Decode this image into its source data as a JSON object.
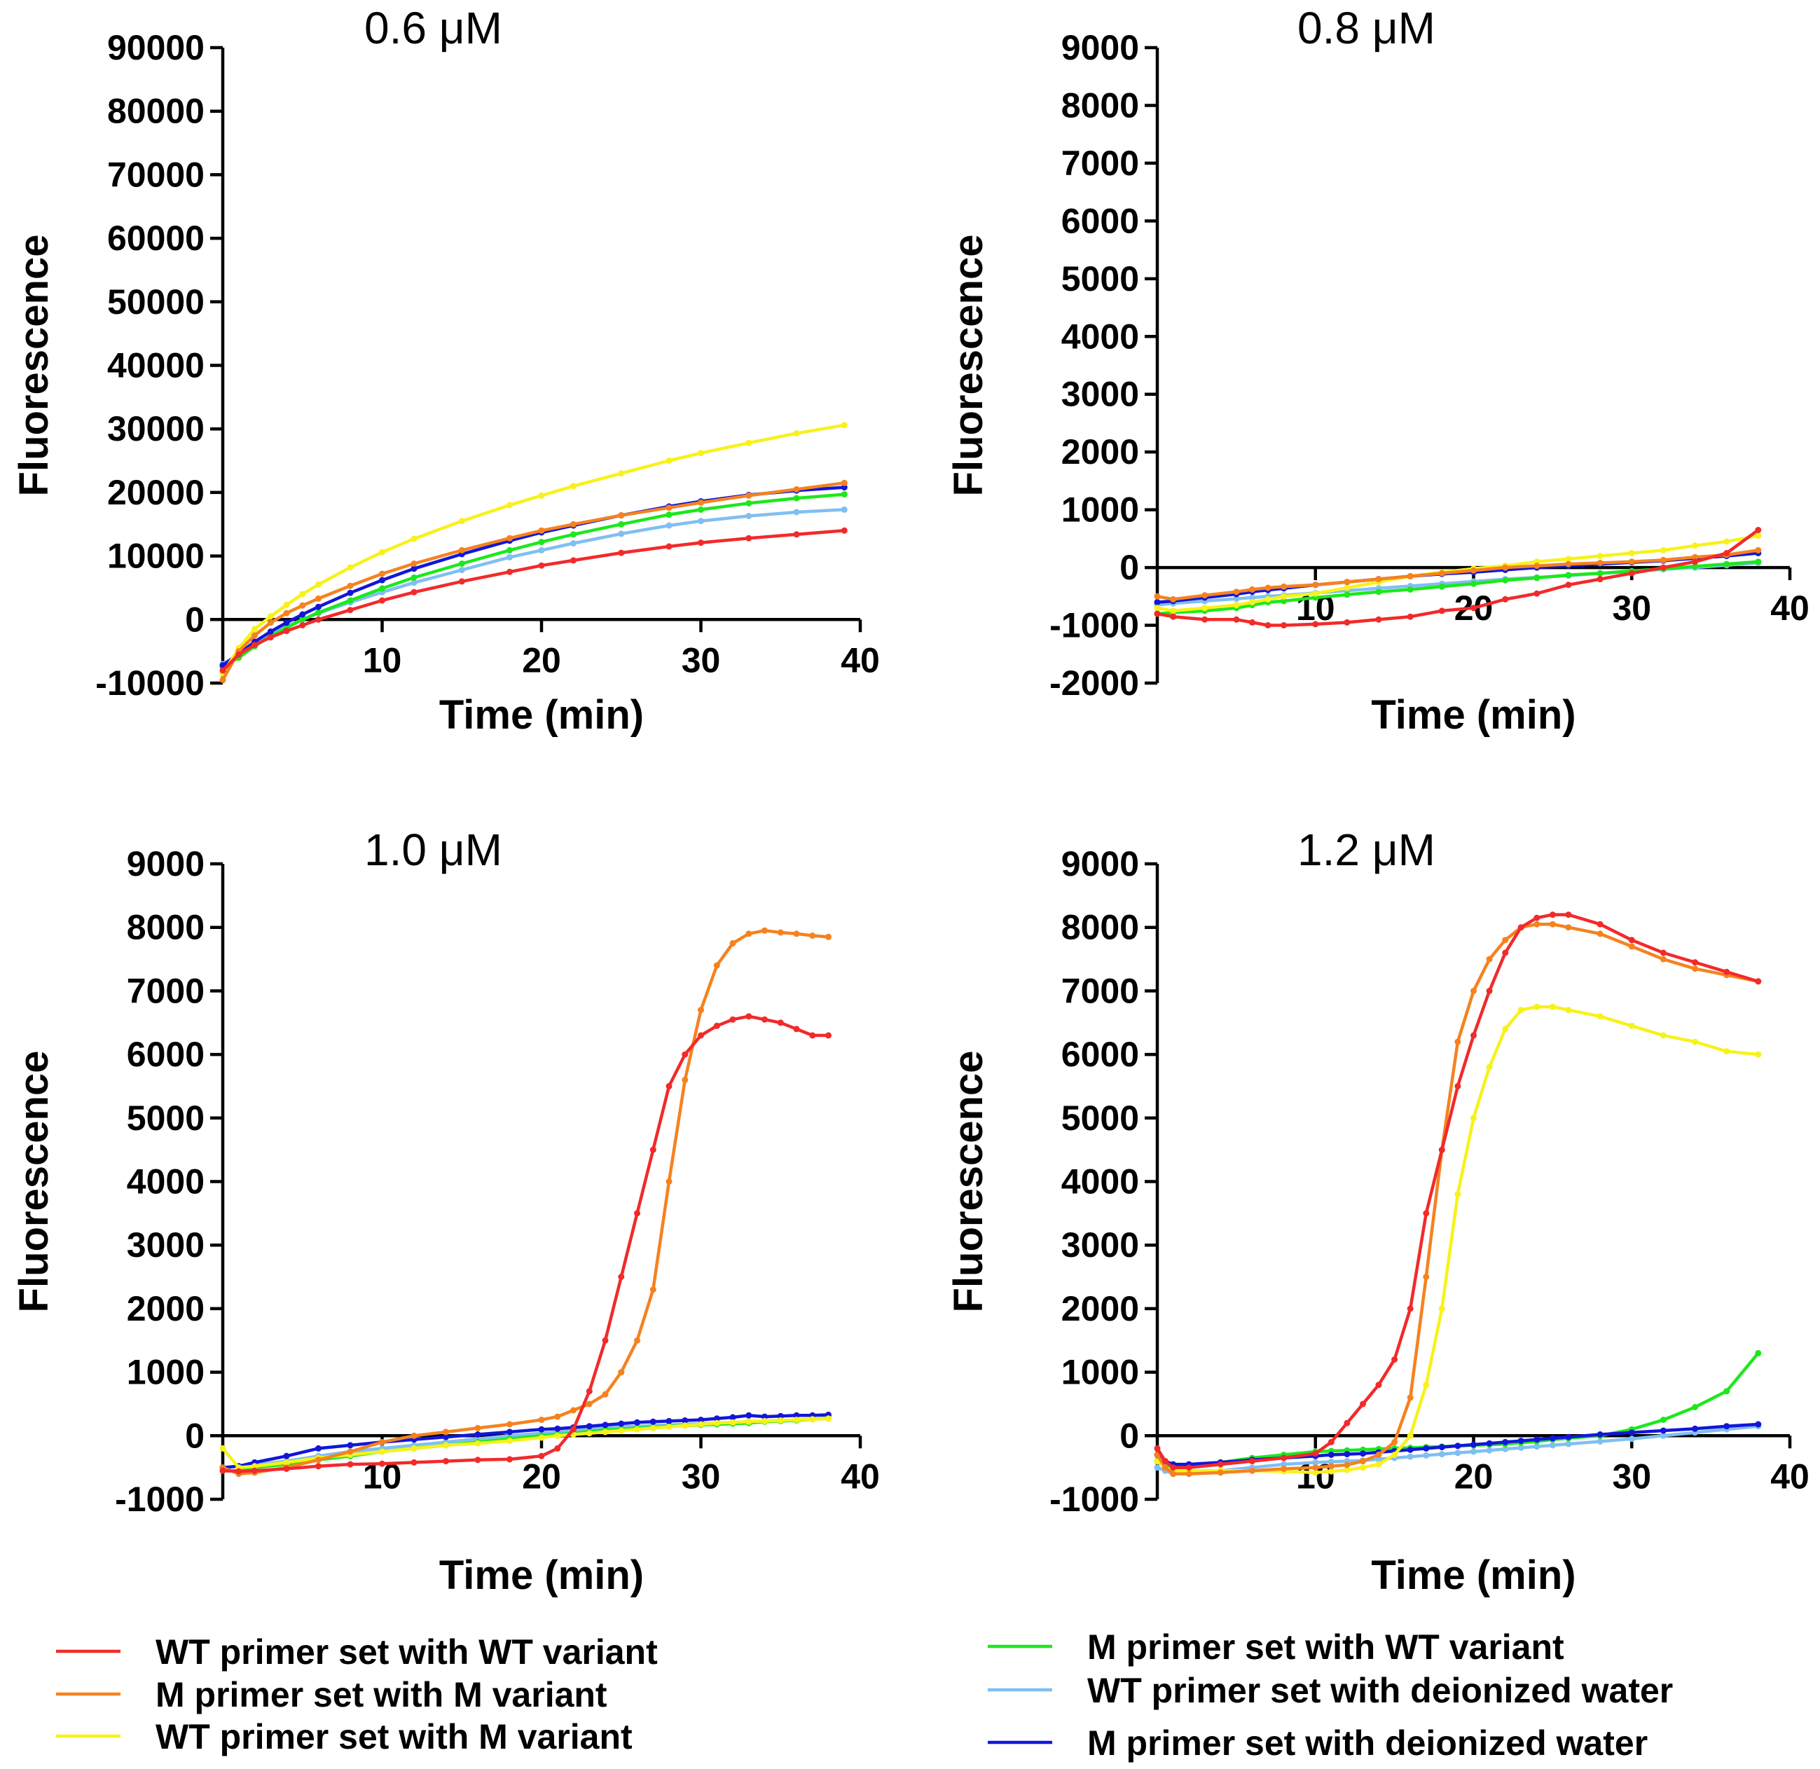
{
  "chart_data": [
    {
      "type": "line",
      "title": "0.6 μM",
      "xlabel": "Time (min)",
      "ylabel": "Fluorescence",
      "xlim": [
        0,
        40
      ],
      "ylim": [
        -10000,
        90000
      ],
      "xticks": [
        10,
        20,
        30,
        40
      ],
      "yticks": [
        -10000,
        0,
        10000,
        20000,
        30000,
        40000,
        50000,
        60000,
        70000,
        80000,
        90000
      ],
      "x": [
        0,
        1,
        2,
        3,
        4,
        5,
        6,
        8,
        10,
        12,
        15,
        18,
        20,
        22,
        25,
        28,
        30,
        33,
        36,
        39
      ],
      "series": [
        {
          "name": "WT primer set with WT variant",
          "values": [
            -8000,
            -5500,
            -4000,
            -2800,
            -1800,
            -900,
            0,
            1500,
            3000,
            4300,
            6000,
            7500,
            8500,
            9300,
            10500,
            11500,
            12100,
            12800,
            13400,
            14000
          ]
        },
        {
          "name": "M primer set with M variant",
          "values": [
            -9500,
            -5000,
            -2500,
            -500,
            1000,
            2200,
            3300,
            5300,
            7200,
            8800,
            10900,
            12800,
            14000,
            15000,
            16400,
            17600,
            18400,
            19500,
            20500,
            21500
          ]
        },
        {
          "name": "WT primer set with M variant",
          "values": [
            -8500,
            -4500,
            -1500,
            500,
            2300,
            4000,
            5500,
            8200,
            10600,
            12700,
            15500,
            18000,
            19500,
            21000,
            23000,
            25000,
            26200,
            27800,
            29300,
            30600
          ]
        },
        {
          "name": "M primer set with WT variant",
          "values": [
            -7500,
            -6000,
            -4200,
            -2600,
            -1300,
            0,
            1100,
            3000,
            4900,
            6600,
            8800,
            10900,
            12200,
            13400,
            15000,
            16500,
            17300,
            18300,
            19100,
            19700
          ]
        },
        {
          "name": "WT primer set with deionized water",
          "values": [
            -7000,
            -5500,
            -3800,
            -2300,
            -1100,
            0,
            1000,
            2700,
            4300,
            5800,
            7800,
            9800,
            10900,
            12000,
            13500,
            14800,
            15500,
            16300,
            16900,
            17300
          ]
        },
        {
          "name": "M primer set with deionized water",
          "values": [
            -7200,
            -5400,
            -3500,
            -1900,
            -500,
            800,
            2000,
            4200,
            6200,
            8000,
            10300,
            12400,
            13700,
            14800,
            16400,
            17800,
            18600,
            19600,
            20300,
            20800
          ]
        }
      ]
    },
    {
      "type": "line",
      "title": "0.8 μM",
      "xlabel": "Time (min)",
      "ylabel": "Fluorescence",
      "xlim": [
        0,
        40
      ],
      "ylim": [
        -2000,
        9000
      ],
      "xticks": [
        10,
        20,
        30,
        40
      ],
      "yticks": [
        -2000,
        -1000,
        0,
        1000,
        2000,
        3000,
        4000,
        5000,
        6000,
        7000,
        8000,
        9000
      ],
      "x": [
        0,
        1,
        3,
        5,
        6,
        7,
        8,
        10,
        12,
        14,
        16,
        18,
        20,
        22,
        24,
        26,
        28,
        30,
        32,
        34,
        36,
        38
      ],
      "series": [
        {
          "name": "WT primer set with WT variant",
          "values": [
            -800,
            -850,
            -900,
            -900,
            -950,
            -1000,
            -1000,
            -980,
            -950,
            -900,
            -850,
            -750,
            -700,
            -550,
            -450,
            -300,
            -200,
            -100,
            0,
            100,
            250,
            650
          ]
        },
        {
          "name": "M primer set with M variant",
          "values": [
            -500,
            -550,
            -480,
            -420,
            -380,
            -350,
            -330,
            -300,
            -250,
            -200,
            -150,
            -100,
            -50,
            0,
            30,
            60,
            80,
            100,
            130,
            180,
            220,
            300
          ]
        },
        {
          "name": "WT primer set with M variant",
          "values": [
            -700,
            -750,
            -700,
            -650,
            -600,
            -550,
            -500,
            -450,
            -350,
            -250,
            -150,
            -80,
            -20,
            30,
            100,
            150,
            200,
            250,
            300,
            380,
            450,
            550
          ]
        },
        {
          "name": "M primer set with WT variant",
          "values": [
            -800,
            -780,
            -750,
            -700,
            -650,
            -600,
            -580,
            -520,
            -470,
            -420,
            -380,
            -330,
            -280,
            -220,
            -180,
            -130,
            -100,
            -60,
            -20,
            20,
            60,
            100
          ]
        },
        {
          "name": "WT primer set with deionized water",
          "values": [
            -650,
            -620,
            -580,
            -540,
            -520,
            -500,
            -480,
            -440,
            -400,
            -360,
            -320,
            -280,
            -240,
            -200,
            -170,
            -140,
            -100,
            -70,
            -30,
            0,
            40,
            80
          ]
        },
        {
          "name": "M primer set with deionized water",
          "values": [
            -600,
            -580,
            -520,
            -460,
            -420,
            -390,
            -360,
            -300,
            -250,
            -200,
            -150,
            -110,
            -80,
            -40,
            0,
            30,
            60,
            90,
            120,
            160,
            200,
            250
          ]
        }
      ]
    },
    {
      "type": "line",
      "title": "1.0 μM",
      "xlabel": "Time (min)",
      "ylabel": "Fluorescence",
      "xlim": [
        0,
        40
      ],
      "ylim": [
        -1000,
        9000
      ],
      "xticks": [
        10,
        20,
        30,
        40
      ],
      "yticks": [
        -1000,
        0,
        1000,
        2000,
        3000,
        4000,
        5000,
        6000,
        7000,
        8000,
        9000
      ],
      "x": [
        0,
        1,
        2,
        4,
        6,
        8,
        10,
        12,
        14,
        16,
        18,
        20,
        21,
        22,
        23,
        24,
        25,
        26,
        27,
        28,
        29,
        30,
        31,
        32,
        33,
        34,
        35,
        36,
        37,
        38
      ],
      "series": [
        {
          "name": "WT primer set with WT variant",
          "values": [
            -550,
            -560,
            -550,
            -520,
            -480,
            -450,
            -440,
            -420,
            -400,
            -380,
            -370,
            -320,
            -200,
            100,
            700,
            1500,
            2500,
            3500,
            4500,
            5500,
            6000,
            6300,
            6450,
            6550,
            6600,
            6550,
            6500,
            6400,
            6300,
            6300
          ]
        },
        {
          "name": "M primer set with M variant",
          "values": [
            -500,
            -600,
            -580,
            -500,
            -380,
            -250,
            -100,
            0,
            60,
            120,
            180,
            250,
            300,
            400,
            500,
            650,
            1000,
            1500,
            2300,
            4000,
            5600,
            6700,
            7400,
            7750,
            7900,
            7950,
            7920,
            7900,
            7870,
            7850
          ]
        },
        {
          "name": "WT primer set with M variant",
          "values": [
            -200,
            -500,
            -480,
            -420,
            -350,
            -300,
            -250,
            -200,
            -150,
            -120,
            -80,
            -30,
            0,
            20,
            40,
            60,
            80,
            100,
            120,
            140,
            160,
            180,
            200,
            210,
            220,
            230,
            240,
            250,
            260,
            270
          ]
        },
        {
          "name": "M primer set with WT variant",
          "values": [
            -550,
            -550,
            -500,
            -450,
            -380,
            -320,
            -250,
            -200,
            -150,
            -100,
            -50,
            0,
            20,
            40,
            70,
            90,
            100,
            120,
            130,
            150,
            160,
            170,
            180,
            190,
            200,
            220,
            230,
            240,
            260,
            280
          ]
        },
        {
          "name": "WT primer set with deionized water",
          "values": [
            -500,
            -480,
            -460,
            -400,
            -320,
            -250,
            -200,
            -150,
            -100,
            -50,
            0,
            40,
            60,
            80,
            100,
            120,
            140,
            150,
            160,
            170,
            180,
            190,
            200,
            210,
            220,
            230,
            240,
            250,
            260,
            270
          ]
        },
        {
          "name": "M primer set with deionized water",
          "values": [
            -500,
            -480,
            -420,
            -320,
            -200,
            -150,
            -100,
            -60,
            -20,
            20,
            60,
            100,
            110,
            130,
            150,
            170,
            190,
            210,
            220,
            230,
            240,
            250,
            270,
            290,
            320,
            300,
            310,
            320,
            320,
            330
          ]
        }
      ]
    },
    {
      "type": "line",
      "title": "1.2 μM",
      "xlabel": "Time (min)",
      "ylabel": "Fluorescence",
      "xlim": [
        0,
        40
      ],
      "ylim": [
        -1000,
        9000
      ],
      "xticks": [
        10,
        20,
        30,
        40
      ],
      "yticks": [
        -1000,
        0,
        1000,
        2000,
        3000,
        4000,
        5000,
        6000,
        7000,
        8000,
        9000
      ],
      "x": [
        0,
        0.5,
        1,
        2,
        4,
        6,
        8,
        10,
        11,
        12,
        13,
        14,
        15,
        16,
        17,
        18,
        19,
        20,
        21,
        22,
        23,
        24,
        25,
        26,
        28,
        30,
        32,
        34,
        36,
        38
      ],
      "series": [
        {
          "name": "WT primer set with WT variant",
          "values": [
            -200,
            -400,
            -500,
            -500,
            -450,
            -400,
            -350,
            -280,
            -100,
            200,
            500,
            800,
            1200,
            2000,
            3500,
            4500,
            5500,
            6300,
            7000,
            7600,
            8000,
            8150,
            8200,
            8200,
            8050,
            7800,
            7600,
            7450,
            7300,
            7150
          ]
        },
        {
          "name": "M primer set with M variant",
          "values": [
            -300,
            -500,
            -600,
            -600,
            -580,
            -550,
            -520,
            -500,
            -480,
            -460,
            -400,
            -300,
            -100,
            600,
            2500,
            4500,
            6200,
            7000,
            7500,
            7800,
            8000,
            8050,
            8050,
            8000,
            7900,
            7700,
            7500,
            7350,
            7250,
            7150
          ]
        },
        {
          "name": "WT primer set with M variant",
          "values": [
            -400,
            -500,
            -550,
            -550,
            -550,
            -550,
            -560,
            -580,
            -560,
            -540,
            -500,
            -450,
            -300,
            0,
            800,
            2000,
            3800,
            5000,
            5800,
            6400,
            6700,
            6750,
            6750,
            6700,
            6600,
            6450,
            6300,
            6200,
            6050,
            6000
          ]
        },
        {
          "name": "M primer set with WT variant",
          "values": [
            -400,
            -450,
            -500,
            -480,
            -420,
            -350,
            -300,
            -250,
            -240,
            -230,
            -220,
            -210,
            -200,
            -190,
            -180,
            -170,
            -160,
            -150,
            -140,
            -130,
            -110,
            -90,
            -60,
            -40,
            0,
            100,
            250,
            450,
            700,
            1300
          ]
        },
        {
          "name": "WT primer set with deionized water",
          "values": [
            -500,
            -550,
            -600,
            -600,
            -550,
            -500,
            -450,
            -420,
            -410,
            -400,
            -390,
            -370,
            -350,
            -330,
            -310,
            -290,
            -270,
            -250,
            -230,
            -210,
            -190,
            -170,
            -150,
            -130,
            -90,
            -50,
            0,
            50,
            100,
            150
          ]
        },
        {
          "name": "M primer set with deionized water",
          "values": [
            -300,
            -400,
            -450,
            -450,
            -420,
            -380,
            -350,
            -320,
            -300,
            -290,
            -280,
            -260,
            -240,
            -220,
            -200,
            -180,
            -160,
            -140,
            -120,
            -100,
            -80,
            -60,
            -40,
            -20,
            20,
            50,
            80,
            110,
            150,
            180
          ]
        }
      ]
    }
  ],
  "legend": {
    "items": [
      {
        "label": "WT primer set with WT variant",
        "color": "#f22a2a"
      },
      {
        "label": "M primer set with M variant",
        "color": "#f5821f"
      },
      {
        "label": "WT primer set with M variant",
        "color": "#f7f21a"
      },
      {
        "label": "M primer set with WT variant",
        "color": "#1ce81c"
      },
      {
        "label": "WT primer set with deionized water",
        "color": "#7fbff2"
      },
      {
        "label": "M primer set with deionized water",
        "color": "#1216d9"
      }
    ]
  }
}
